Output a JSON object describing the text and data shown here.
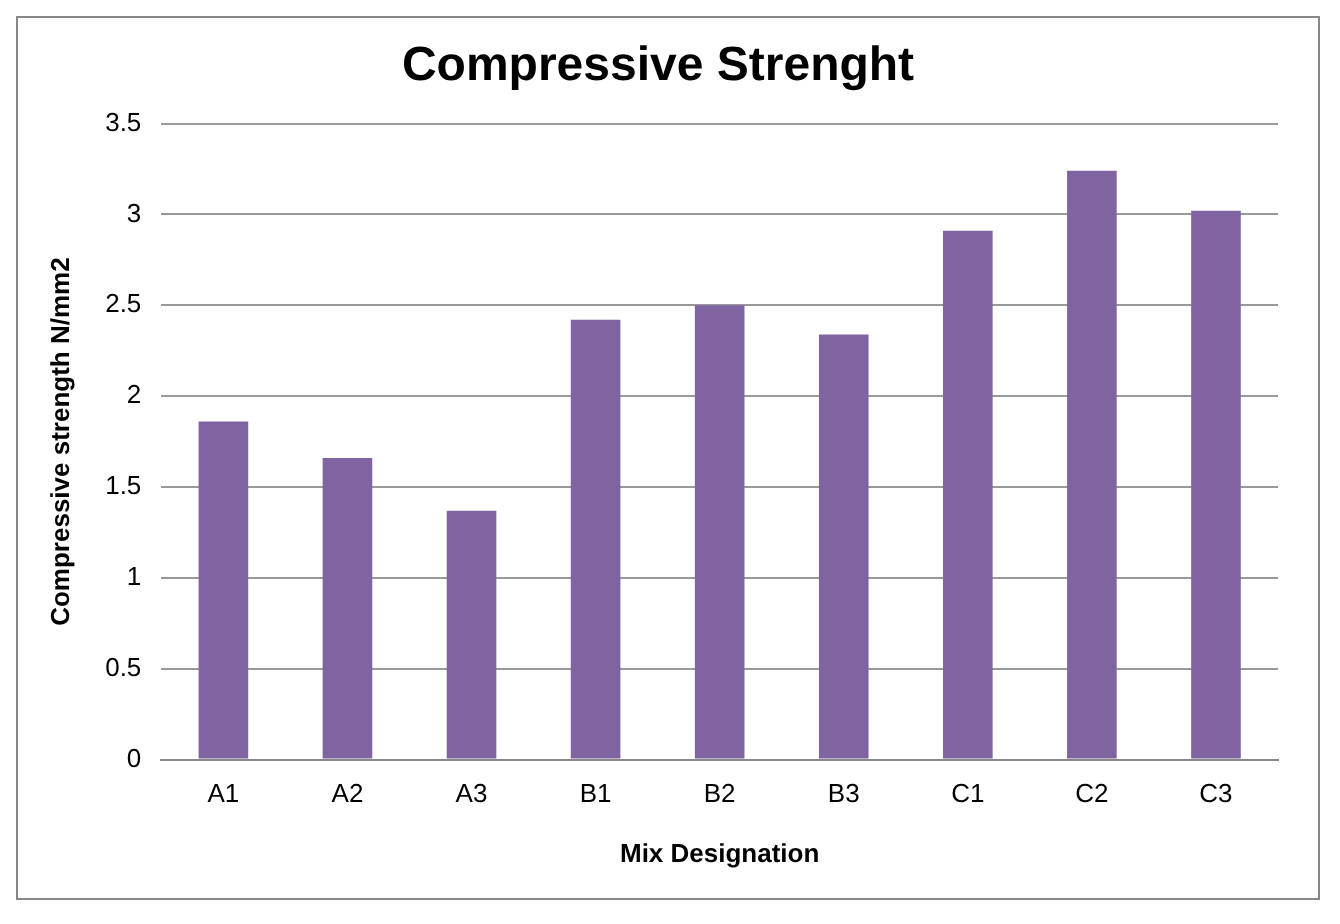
{
  "chart_data": {
    "type": "bar",
    "title": "Compressive Strenght",
    "xlabel": "Mix Designation",
    "ylabel": "Compressive strength N/mm2",
    "categories": [
      "A1",
      "A2",
      "A3",
      "B1",
      "B2",
      "B3",
      "C1",
      "C2",
      "C3"
    ],
    "values": [
      1.86,
      1.66,
      1.37,
      2.42,
      2.5,
      2.34,
      2.91,
      3.24,
      3.02
    ],
    "color": "#8064a2",
    "ylim": [
      0,
      3.5
    ],
    "yticks": [
      0,
      0.5,
      1,
      1.5,
      2,
      2.5,
      3,
      3.5
    ],
    "grid": "y"
  }
}
